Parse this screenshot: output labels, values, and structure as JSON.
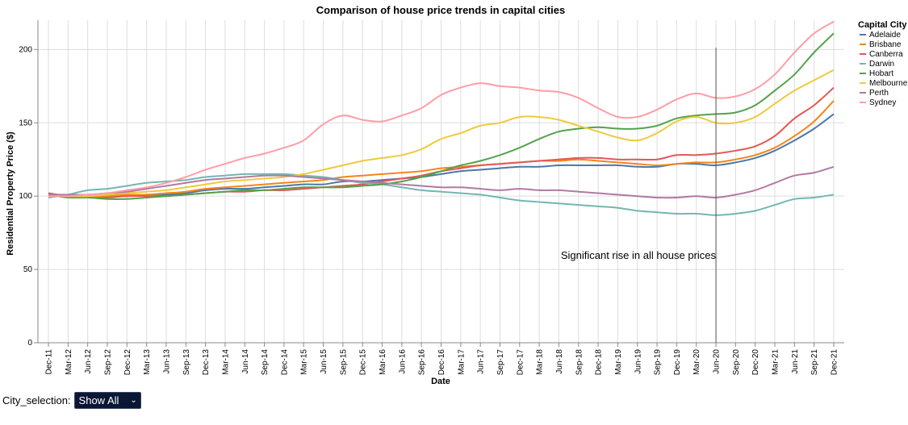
{
  "chart_data": {
    "type": "line",
    "title": "Comparison of house price trends in capital cities",
    "xlabel": "Date",
    "ylabel": "Residential Property Price ($)",
    "ylim": [
      0,
      220
    ],
    "yticks": [
      0,
      50,
      100,
      150,
      200
    ],
    "grid": true,
    "legend_title": "Capital City",
    "legend_placement": "right",
    "x": [
      "Dec-11",
      "Mar-12",
      "Jun-12",
      "Sep-12",
      "Dec-12",
      "Mar-13",
      "Jun-13",
      "Sep-13",
      "Dec-13",
      "Mar-14",
      "Jun-14",
      "Sep-14",
      "Dec-14",
      "Mar-15",
      "Jun-15",
      "Sep-15",
      "Dec-15",
      "Mar-16",
      "Jun-16",
      "Sep-16",
      "Dec-16",
      "Mar-17",
      "Jun-17",
      "Sep-17",
      "Dec-17",
      "Mar-18",
      "Jun-18",
      "Sep-18",
      "Dec-18",
      "Mar-19",
      "Jun-19",
      "Sep-19",
      "Dec-19",
      "Mar-20",
      "Jun-20",
      "Sep-20",
      "Dec-20",
      "Mar-21",
      "Jun-21",
      "Sep-21",
      "Dec-21"
    ],
    "series": [
      {
        "name": "Adelaide",
        "color": "#4c78a8",
        "values": [
          101,
          100,
          100,
          100,
          100,
          101,
          101,
          102,
          104,
          105,
          105,
          106,
          107,
          108,
          108,
          110,
          110,
          111,
          112,
          113,
          115,
          117,
          118,
          119,
          120,
          120,
          121,
          121,
          121,
          121,
          120,
          120,
          122,
          122,
          121,
          123,
          126,
          131,
          138,
          146,
          156
        ]
      },
      {
        "name": "Brisbane",
        "color": "#f58518",
        "values": [
          101,
          100,
          100,
          100,
          101,
          101,
          102,
          103,
          105,
          106,
          107,
          108,
          109,
          110,
          111,
          113,
          114,
          115,
          116,
          117,
          119,
          120,
          121,
          122,
          123,
          124,
          124,
          125,
          124,
          123,
          122,
          121,
          122,
          123,
          123,
          125,
          128,
          133,
          141,
          151,
          165
        ]
      },
      {
        "name": "Canberra",
        "color": "#e45756",
        "values": [
          102,
          100,
          99,
          99,
          100,
          100,
          100,
          101,
          102,
          103,
          103,
          104,
          104,
          105,
          106,
          107,
          108,
          110,
          112,
          114,
          117,
          119,
          121,
          122,
          123,
          124,
          125,
          126,
          126,
          125,
          125,
          125,
          128,
          128,
          129,
          131,
          134,
          141,
          153,
          162,
          174
        ]
      },
      {
        "name": "Darwin",
        "color": "#72b7b2",
        "values": [
          99,
          101,
          104,
          105,
          107,
          109,
          110,
          111,
          113,
          114,
          115,
          115,
          115,
          114,
          113,
          111,
          109,
          108,
          106,
          104,
          103,
          102,
          101,
          99,
          97,
          96,
          95,
          94,
          93,
          92,
          90,
          89,
          88,
          88,
          87,
          88,
          90,
          94,
          98,
          99,
          101
        ]
      },
      {
        "name": "Hobart",
        "color": "#54a24b",
        "values": [
          101,
          99,
          99,
          98,
          98,
          99,
          100,
          101,
          102,
          103,
          104,
          104,
          105,
          106,
          106,
          106,
          107,
          108,
          110,
          113,
          117,
          121,
          124,
          128,
          133,
          139,
          144,
          146,
          147,
          146,
          146,
          148,
          153,
          155,
          156,
          157,
          162,
          172,
          183,
          198,
          211
        ]
      },
      {
        "name": "Melbourne",
        "color": "#eeca3b",
        "values": [
          100,
          100,
          100,
          101,
          102,
          103,
          104,
          106,
          108,
          110,
          111,
          112,
          113,
          115,
          118,
          121,
          124,
          126,
          128,
          132,
          139,
          143,
          148,
          150,
          154,
          154,
          152,
          148,
          144,
          140,
          138,
          143,
          151,
          154,
          150,
          150,
          154,
          163,
          172,
          179,
          186
        ]
      },
      {
        "name": "Perth",
        "color": "#b279a2",
        "values": [
          101,
          101,
          101,
          102,
          103,
          105,
          107,
          109,
          111,
          112,
          113,
          114,
          114,
          113,
          112,
          111,
          110,
          109,
          108,
          107,
          106,
          106,
          105,
          104,
          105,
          104,
          104,
          103,
          102,
          101,
          100,
          99,
          99,
          100,
          99,
          101,
          104,
          109,
          114,
          116,
          120
        ]
      },
      {
        "name": "Sydney",
        "color": "#ff9da6",
        "values": [
          100,
          100,
          101,
          102,
          104,
          106,
          109,
          113,
          118,
          122,
          126,
          129,
          133,
          138,
          149,
          155,
          152,
          151,
          155,
          160,
          169,
          174,
          177,
          175,
          174,
          172,
          171,
          167,
          160,
          154,
          154,
          159,
          166,
          170,
          167,
          168,
          173,
          183,
          198,
          211,
          219
        ]
      }
    ],
    "annotation": {
      "text": "Significant rise in all house prices",
      "at_x": "Jun-20"
    }
  },
  "controls": {
    "label": "City_selection:",
    "selected": "Show All"
  }
}
